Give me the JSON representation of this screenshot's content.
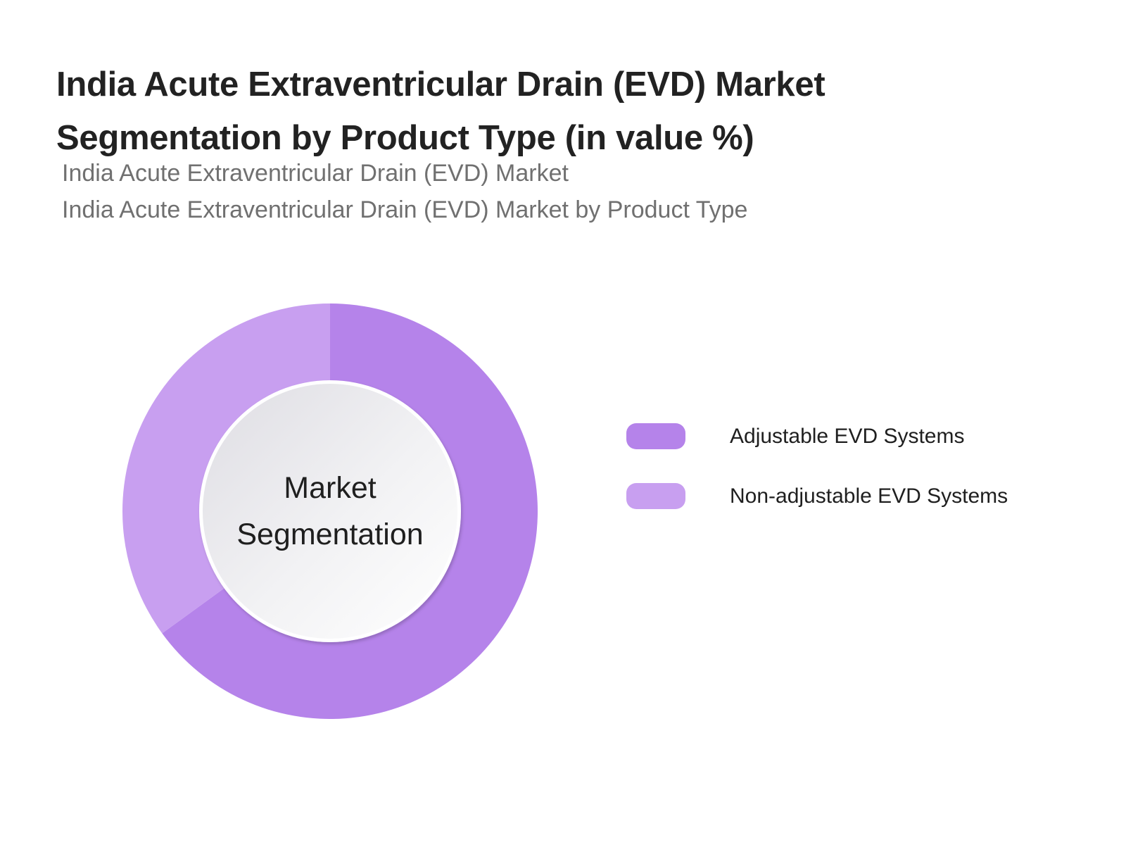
{
  "header": {
    "title_line1": "India Acute Extraventricular Drain (EVD) Market",
    "title_line2": "Segmentation by Product Type (in value %)",
    "subtitle1": "India Acute Extraventricular Drain (EVD) Market",
    "subtitle2": "India Acute Extraventricular Drain (EVD) Market by Product Type"
  },
  "center_label": {
    "line1": "Market",
    "line2": "Segmentation"
  },
  "legend": [
    {
      "label": "Adjustable EVD Systems",
      "color": "#b583ea"
    },
    {
      "label": "Non-adjustable EVD Systems",
      "color": "#c89ff0"
    }
  ],
  "chart_data": {
    "type": "pie",
    "subtype": "donut",
    "title": "India Acute Extraventricular Drain (EVD) Market Segmentation by Product Type (in value %)",
    "subtitle": [
      "India Acute Extraventricular Drain (EVD) Market",
      "India Acute Extraventricular Drain (EVD) Market by Product Type"
    ],
    "center_text": "Market Segmentation",
    "categories": [
      "Adjustable EVD Systems",
      "Non-adjustable EVD Systems"
    ],
    "values": [
      65,
      35
    ],
    "unit": "%",
    "colors": [
      "#b583ea",
      "#c89ff0"
    ],
    "start_angle_deg": 0,
    "direction": "clockwise",
    "data_labels": false,
    "legend_position": "right"
  }
}
